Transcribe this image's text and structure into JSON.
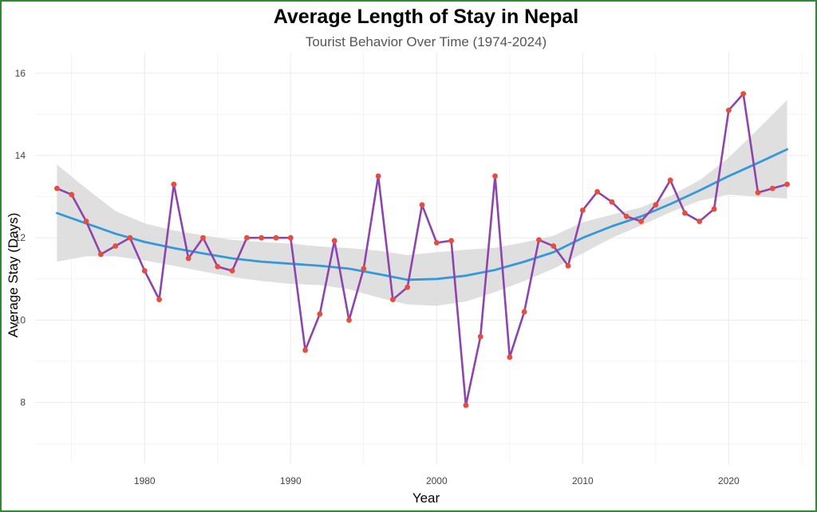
{
  "chart_data": {
    "type": "line",
    "title": "Average Length of Stay in Nepal",
    "subtitle": "Tourist Behavior Over Time (1974-2024)",
    "xlabel": "Year",
    "ylabel": "Average Stay (Days)",
    "xlim": [
      1972.5,
      2025.5
    ],
    "ylim": [
      6.5,
      16.5
    ],
    "x_ticks": [
      1980,
      1990,
      2000,
      2010,
      2020
    ],
    "y_ticks": [
      8,
      10,
      12,
      14,
      16
    ],
    "grid": true,
    "legend": "none",
    "colors": {
      "line": "#8e44ad",
      "points": "#e74c3c",
      "smooth": "#3498db",
      "band": "#d9d9d9",
      "grid": "#ebebeb",
      "border": "#2e8b2e"
    },
    "series": [
      {
        "x": [
          1974,
          1975,
          1976,
          1977,
          1978,
          1979,
          1980,
          1981,
          1982,
          1983,
          1984,
          1985,
          1986,
          1987,
          1988,
          1989,
          1990,
          1991,
          1992,
          1993,
          1994,
          1995,
          1996,
          1997,
          1998,
          1999,
          2000,
          2001,
          2002,
          2003,
          2004,
          2005,
          2006,
          2007,
          2008,
          2009,
          2010,
          2011,
          2012,
          2013,
          2014,
          2015,
          2016,
          2017,
          2018,
          2019,
          2020,
          2021,
          2022,
          2023,
          2024
        ],
        "values": [
          13.2,
          13.05,
          12.4,
          11.6,
          11.8,
          12.0,
          11.2,
          10.5,
          13.3,
          11.5,
          12.0,
          11.3,
          11.2,
          12.0,
          12.0,
          12.0,
          12.0,
          9.27,
          10.15,
          11.93,
          10.0,
          11.25,
          13.5,
          10.5,
          10.8,
          12.8,
          11.88,
          11.93,
          7.93,
          9.6,
          13.5,
          9.1,
          10.2,
          11.95,
          11.8,
          11.32,
          12.67,
          13.12,
          12.87,
          12.52,
          12.4,
          12.8,
          13.4,
          12.6,
          12.4,
          12.7,
          15.1,
          15.5,
          13.1,
          13.2,
          13.3
        ]
      }
    ],
    "trend": {
      "x": [
        1974,
        1976,
        1978,
        1980,
        1982,
        1984,
        1986,
        1988,
        1990,
        1992,
        1994,
        1996,
        1998,
        2000,
        2002,
        2004,
        2006,
        2008,
        2010,
        2012,
        2014,
        2016,
        2018,
        2020,
        2022,
        2024
      ],
      "values": [
        12.6,
        12.35,
        12.1,
        11.9,
        11.75,
        11.62,
        11.5,
        11.42,
        11.37,
        11.32,
        11.25,
        11.12,
        10.98,
        11.0,
        11.08,
        11.22,
        11.42,
        11.65,
        12.0,
        12.28,
        12.52,
        12.82,
        13.15,
        13.5,
        13.82,
        14.15
      ],
      "band_low": [
        11.42,
        11.55,
        11.55,
        11.45,
        11.32,
        11.18,
        11.05,
        10.95,
        10.88,
        10.85,
        10.75,
        10.55,
        10.38,
        10.35,
        10.45,
        10.68,
        10.95,
        11.25,
        11.62,
        12.0,
        12.3,
        12.62,
        12.9,
        13.05,
        13.0,
        12.95
      ],
      "band_high": [
        13.78,
        13.2,
        12.65,
        12.35,
        12.18,
        12.06,
        11.95,
        11.9,
        11.86,
        11.79,
        11.75,
        11.69,
        11.58,
        11.65,
        11.71,
        11.76,
        11.89,
        12.05,
        12.38,
        12.56,
        12.74,
        13.02,
        13.4,
        13.95,
        14.64,
        15.35
      ]
    }
  }
}
